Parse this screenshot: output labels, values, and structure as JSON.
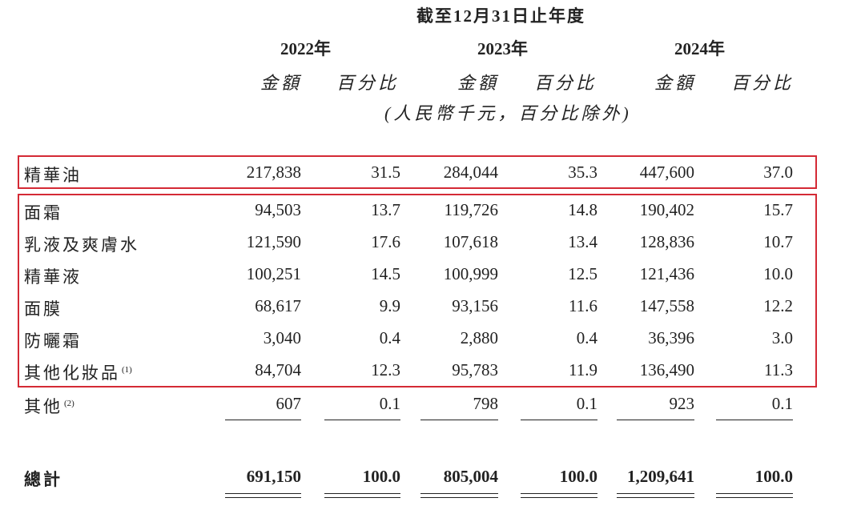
{
  "header": {
    "period": "截至12月31日止年度",
    "years": [
      "2022年",
      "2023年",
      "2024年"
    ],
    "sub_amount": "金額",
    "sub_percent": "百分比",
    "unit_note": "(人民幣千元，百分比除外)"
  },
  "rows": [
    {
      "label": "精華油",
      "sup": "",
      "values": [
        "217,838",
        "31.5",
        "284,044",
        "35.3",
        "447,600",
        "37.0"
      ]
    },
    {
      "label": "面霜",
      "sup": "",
      "values": [
        "94,503",
        "13.7",
        "119,726",
        "14.8",
        "190,402",
        "15.7"
      ]
    },
    {
      "label": "乳液及爽膚水",
      "sup": "",
      "values": [
        "121,590",
        "17.6",
        "107,618",
        "13.4",
        "128,836",
        "10.7"
      ]
    },
    {
      "label": "精華液",
      "sup": "",
      "values": [
        "100,251",
        "14.5",
        "100,999",
        "12.5",
        "121,436",
        "10.0"
      ]
    },
    {
      "label": "面膜",
      "sup": "",
      "values": [
        "68,617",
        "9.9",
        "93,156",
        "11.6",
        "147,558",
        "12.2"
      ]
    },
    {
      "label": "防曬霜",
      "sup": "",
      "values": [
        "3,040",
        "0.4",
        "2,880",
        "0.4",
        "36,396",
        "3.0"
      ]
    },
    {
      "label": "其他化妝品",
      "sup": "(1)",
      "values": [
        "84,704",
        "12.3",
        "95,783",
        "11.9",
        "136,490",
        "11.3"
      ]
    },
    {
      "label": "其他",
      "sup": "(2)",
      "values": [
        "607",
        "0.1",
        "798",
        "0.1",
        "923",
        "0.1"
      ]
    }
  ],
  "total": {
    "label": "總計",
    "values": [
      "691,150",
      "100.0",
      "805,004",
      "100.0",
      "1,209,641",
      "100.0"
    ]
  },
  "highlight_color": "#d42a35"
}
